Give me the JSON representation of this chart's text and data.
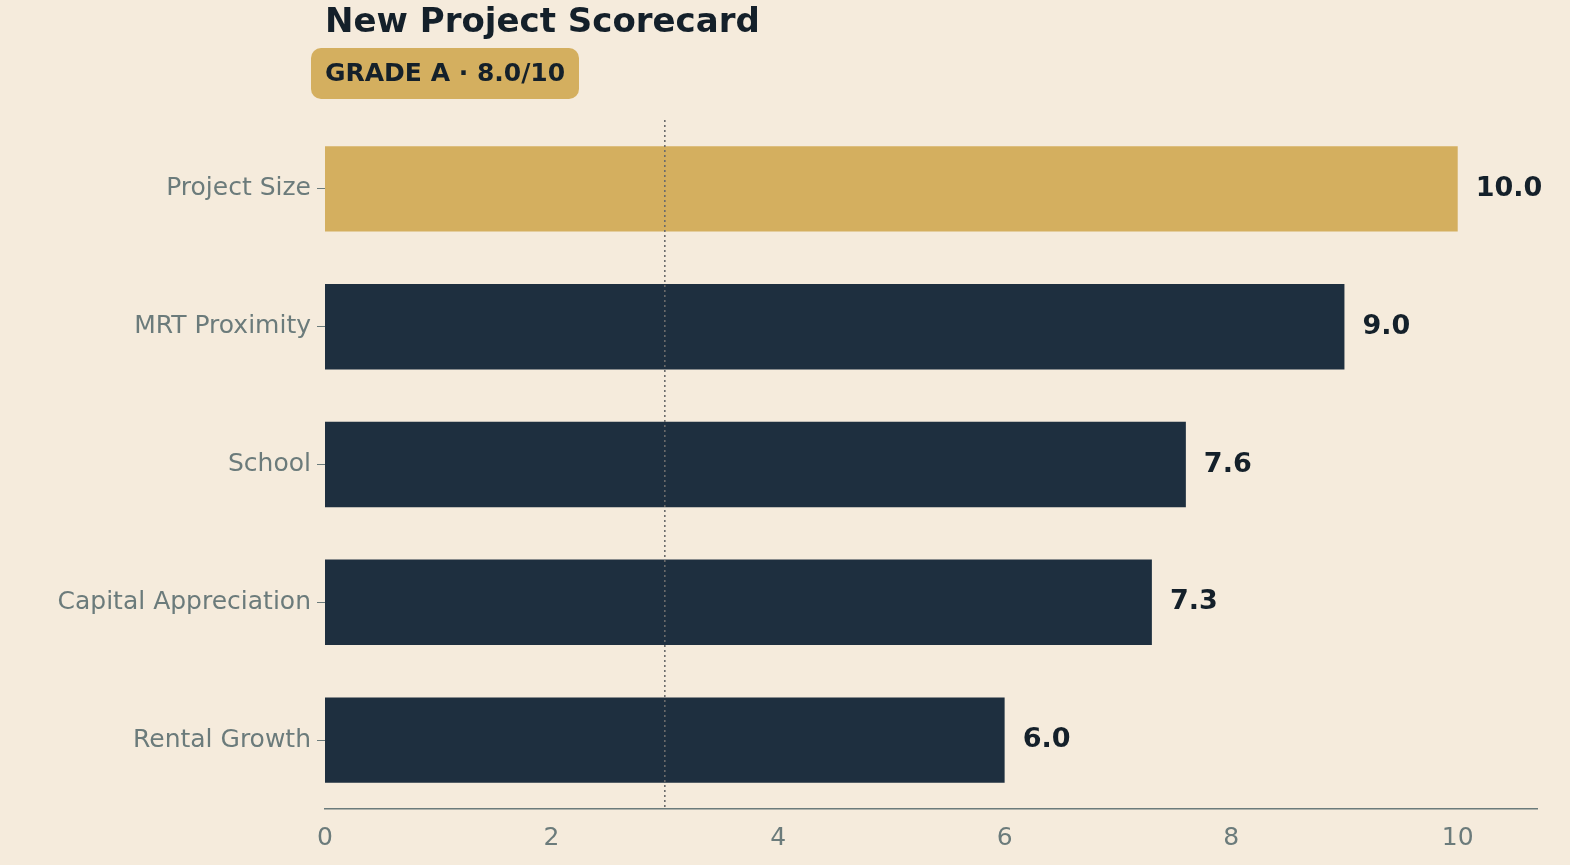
{
  "chart_data": {
    "type": "bar",
    "orientation": "horizontal",
    "title": "New Project Scorecard",
    "annotations": [
      "GRADE A · 8.0/10"
    ],
    "categories": [
      "Project Size",
      "MRT Proximity",
      "School",
      "Capital Appreciation",
      "Rental Growth"
    ],
    "values": [
      10.0,
      9.0,
      7.6,
      7.3,
      6.0
    ],
    "colors": [
      "#d4af5f",
      "#1e2f3f",
      "#1e2f3f",
      "#1e2f3f",
      "#1e2f3f"
    ],
    "xlim": [
      0,
      10.7
    ],
    "xticks": [
      0,
      2,
      4,
      6,
      8,
      10
    ],
    "ref_lines": [
      {
        "axis": "x",
        "value": 3,
        "color": "#6b6b6b",
        "line_style": "dotted"
      }
    ],
    "value_labels": [
      "10.0",
      "9.0",
      "7.6",
      "7.3",
      "6.0"
    ],
    "grid": false,
    "legend": false
  }
}
